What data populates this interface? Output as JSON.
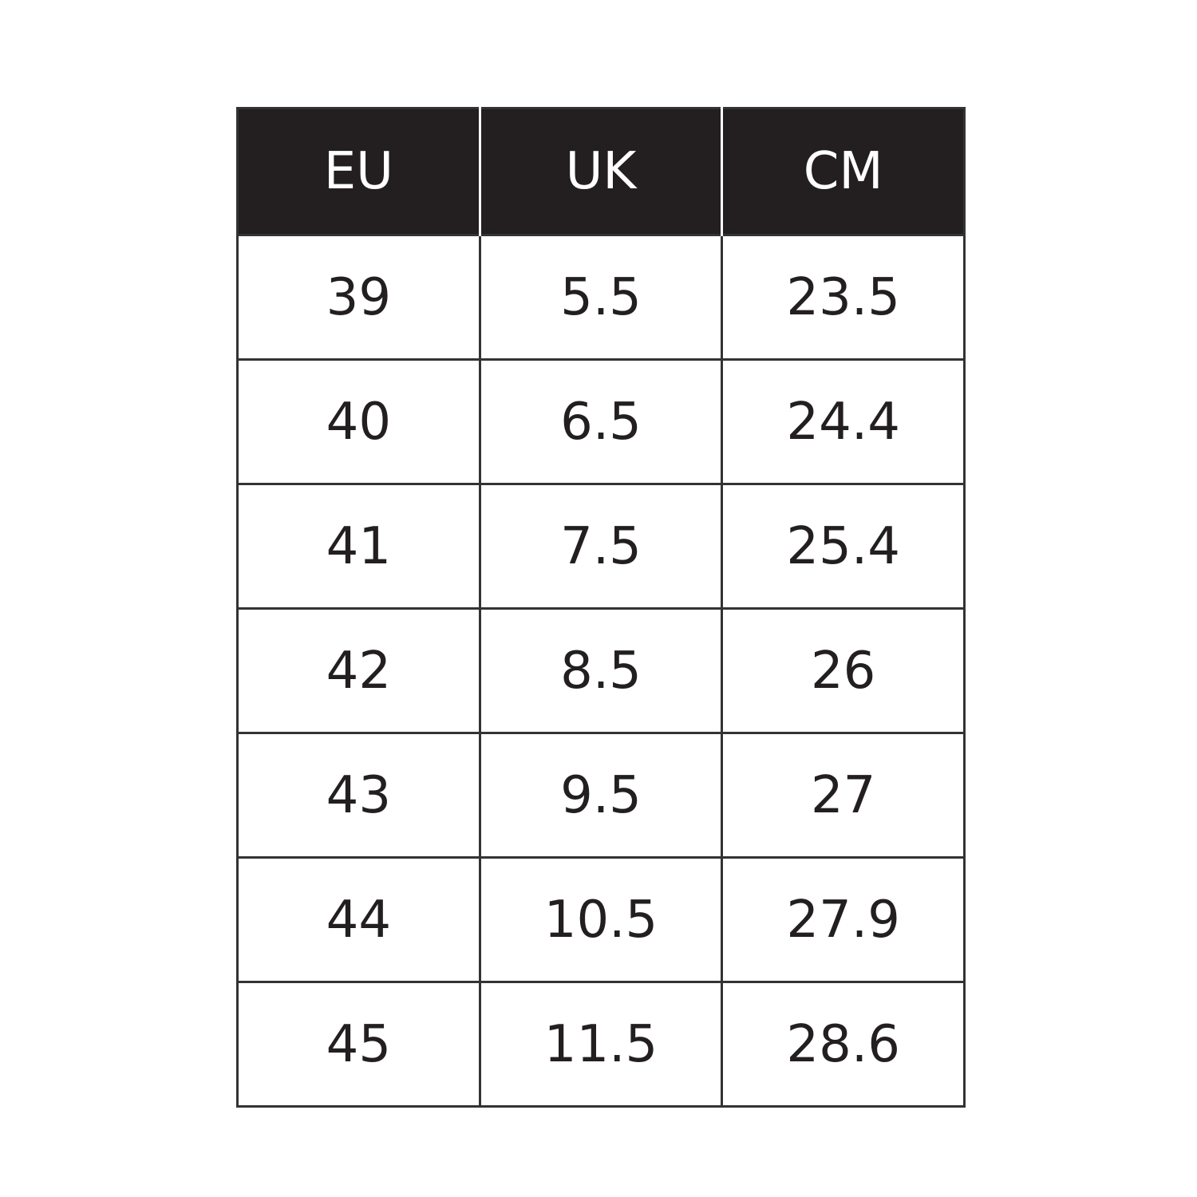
{
  "table": {
    "header": [
      "EU",
      "UK",
      "CM"
    ],
    "rows": [
      [
        39,
        5.5,
        23.5
      ],
      [
        40,
        6.5,
        24.4
      ],
      [
        41,
        7.5,
        25.4
      ],
      [
        42,
        8.5,
        26
      ],
      [
        43,
        9.5,
        27
      ],
      [
        44,
        10.5,
        27.9
      ],
      [
        45,
        11.5,
        28.6
      ]
    ]
  }
}
